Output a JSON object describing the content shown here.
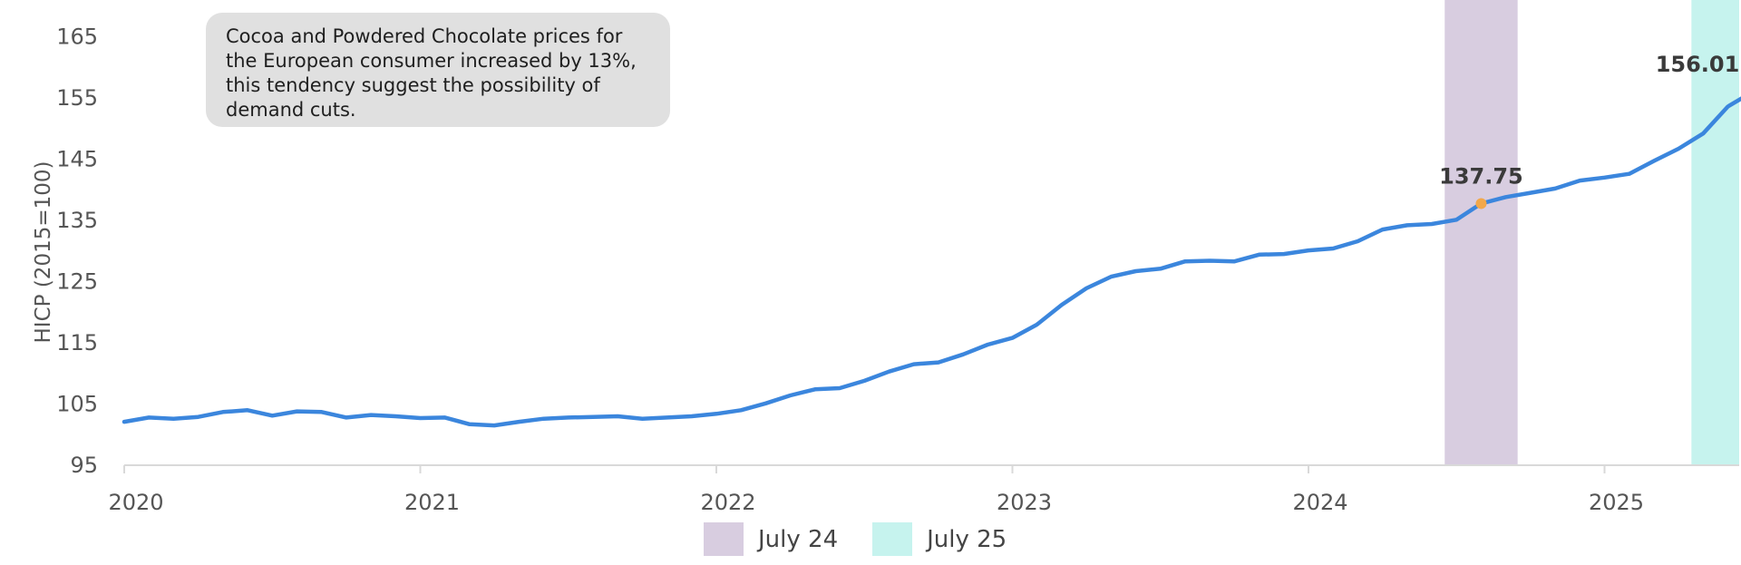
{
  "chart_data": {
    "type": "line",
    "title": "",
    "xlabel": "",
    "ylabel": "HICP (2015=100)",
    "ylim": [
      95,
      165
    ],
    "yticks": [
      "95",
      "105",
      "115",
      "125",
      "135",
      "145",
      "155",
      "165"
    ],
    "xticks": [
      {
        "label": "2020",
        "value": 2020.0
      },
      {
        "label": "2021",
        "value": 2021.0
      },
      {
        "label": "2022",
        "value": 2022.0
      },
      {
        "label": "2023",
        "value": 2023.0
      },
      {
        "label": "2024",
        "value": 2024.0
      },
      {
        "label": "2025",
        "value": 2025.0
      }
    ],
    "grid": false,
    "line_color": "#3b86dd",
    "series": [
      {
        "values": [
          [
            "2020-01",
            102.1
          ],
          [
            "2020-02",
            102.8
          ],
          [
            "2020-03",
            102.6
          ],
          [
            "2020-04",
            102.9
          ],
          [
            "2020-05",
            103.7
          ],
          [
            "2020-06",
            104.0
          ],
          [
            "2020-07",
            103.1
          ],
          [
            "2020-08",
            103.8
          ],
          [
            "2020-09",
            103.7
          ],
          [
            "2020-10",
            102.8
          ],
          [
            "2020-11",
            103.2
          ],
          [
            "2020-12",
            103.0
          ],
          [
            "2021-01",
            102.7
          ],
          [
            "2021-02",
            102.8
          ],
          [
            "2021-03",
            101.7
          ],
          [
            "2021-04",
            101.5
          ],
          [
            "2021-05",
            102.1
          ],
          [
            "2021-06",
            102.6
          ],
          [
            "2021-07",
            102.8
          ],
          [
            "2021-08",
            102.9
          ],
          [
            "2021-09",
            103.0
          ],
          [
            "2021-10",
            102.6
          ],
          [
            "2021-11",
            102.8
          ],
          [
            "2021-12",
            103.0
          ],
          [
            "2022-01",
            103.4
          ],
          [
            "2022-02",
            104.0
          ],
          [
            "2022-03",
            105.1
          ],
          [
            "2022-04",
            106.4
          ],
          [
            "2022-05",
            107.4
          ],
          [
            "2022-06",
            107.6
          ],
          [
            "2022-07",
            108.8
          ],
          [
            "2022-08",
            110.3
          ],
          [
            "2022-09",
            111.5
          ],
          [
            "2022-10",
            111.8
          ],
          [
            "2022-11",
            113.1
          ],
          [
            "2022-12",
            114.7
          ],
          [
            "2023-01",
            115.8
          ],
          [
            "2023-02",
            118.0
          ],
          [
            "2023-03",
            121.2
          ],
          [
            "2023-04",
            123.9
          ],
          [
            "2023-05",
            125.8
          ],
          [
            "2023-06",
            126.7
          ],
          [
            "2023-07",
            127.1
          ],
          [
            "2023-08",
            128.3
          ],
          [
            "2023-09",
            128.4
          ],
          [
            "2023-10",
            128.3
          ],
          [
            "2023-11",
            129.4
          ],
          [
            "2023-12",
            129.5
          ],
          [
            "2024-01",
            130.1
          ],
          [
            "2024-02",
            130.4
          ],
          [
            "2024-03",
            131.6
          ],
          [
            "2024-04",
            133.5
          ],
          [
            "2024-05",
            134.2
          ],
          [
            "2024-06",
            134.4
          ],
          [
            "2024-07",
            135.1
          ],
          [
            "2024-08",
            137.75
          ],
          [
            "2024-09",
            138.8
          ],
          [
            "2024-10",
            139.5
          ],
          [
            "2024-11",
            140.2
          ],
          [
            "2024-12",
            141.5
          ],
          [
            "2025-01",
            142.0
          ],
          [
            "2025-02",
            142.6
          ],
          [
            "2025-03",
            144.7
          ],
          [
            "2025-04",
            146.7
          ],
          [
            "2025-05",
            149.2
          ],
          [
            "2025-06",
            153.6
          ],
          [
            "2025-07",
            156.01
          ]
        ]
      }
    ],
    "highlighted_points": [
      {
        "x": "2024-08",
        "y": 137.75,
        "label": "137.75"
      },
      {
        "x": "2025-07",
        "y": 156.01,
        "label": "156.01"
      }
    ],
    "point_color": "#f2a84a",
    "bands": [
      {
        "from": "2024-07",
        "to": "2024-09",
        "label": "July 24",
        "color": "#d8cde0"
      },
      {
        "from": "2025-05",
        "to": "2025-07",
        "label": "July 25",
        "color": "#c6f3ee"
      }
    ],
    "annotation": "Cocoa and Powdered Chocolate prices for the European consumer increased by 13%, this tendency suggest the possibility of demand cuts.",
    "legend": {
      "position": "bottom",
      "items": [
        {
          "label": "July 24",
          "color": "#d8cde0"
        },
        {
          "label": "July 25",
          "color": "#c6f3ee"
        }
      ]
    }
  }
}
